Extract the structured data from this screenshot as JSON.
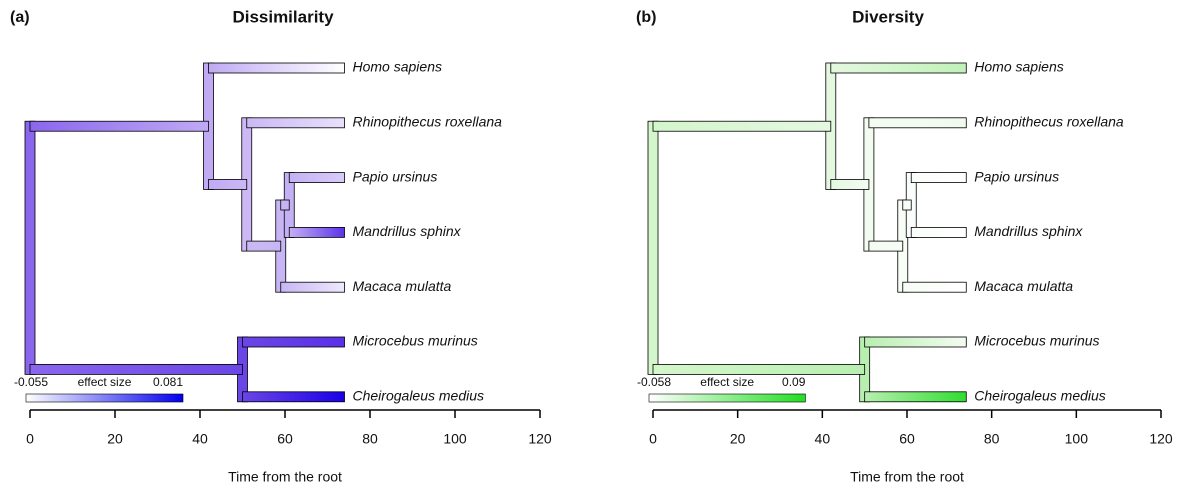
{
  "panels": [
    {
      "label": "(a)",
      "title": "Dissimilarity",
      "xlabel": "Time from the root",
      "xlim": [
        0,
        120
      ],
      "xticks": [
        0,
        20,
        40,
        60,
        80,
        100,
        120
      ],
      "tip_time": 74,
      "legend": {
        "min": -0.055,
        "title": "effect size",
        "max": 0.081,
        "low_color": "#ffffff",
        "high_color": "#0000ee"
      },
      "tree": {
        "time": 0,
        "color": "#8a66ee",
        "children": [
          {
            "time": 42,
            "color": "#c0aaf4",
            "children": [
              {
                "name": "Homo sapiens",
                "color": "#ffffff"
              },
              {
                "time": 51,
                "color": "#cbb8f5",
                "children": [
                  {
                    "name": "Rhinopithecus roxellana",
                    "color": "#e8e0fb"
                  },
                  {
                    "time": 59,
                    "color": "#c8b6f4",
                    "children": [
                      {
                        "time": 61,
                        "color": "#c4b0f4",
                        "children": [
                          {
                            "name": "Papio ursinus",
                            "color": "#d8cdf8"
                          },
                          {
                            "name": "Mandrillus sphinx",
                            "color": "#5a34e8"
                          }
                        ]
                      },
                      {
                        "name": "Macaca mulatta",
                        "color": "#efe9fc"
                      }
                    ]
                  }
                ]
              }
            ]
          },
          {
            "time": 50,
            "color": "#6a46e6",
            "children": [
              {
                "name": "Microcebus murinus",
                "color": "#5a30e8"
              },
              {
                "name": "Cheirogaleus medius",
                "color": "#1a00e8"
              }
            ]
          }
        ]
      }
    },
    {
      "label": "(b)",
      "title": "Diversity",
      "xlabel": "Time from the root",
      "xlim": [
        0,
        120
      ],
      "xticks": [
        0,
        20,
        40,
        60,
        80,
        100,
        120
      ],
      "tip_time": 74,
      "legend": {
        "min": -0.058,
        "title": "effect size",
        "max": 0.09,
        "low_color": "#ffffff",
        "high_color": "#22dd22"
      },
      "tree": {
        "time": 0,
        "color": "#d4f6cc",
        "children": [
          {
            "time": 42,
            "color": "#e4f8e0",
            "children": [
              {
                "name": "Homo sapiens",
                "color": "#c0f2b8"
              },
              {
                "time": 51,
                "color": "#f4fcf2",
                "children": [
                  {
                    "name": "Rhinopithecus roxellana",
                    "color": "#f0fbee"
                  },
                  {
                    "time": 59,
                    "color": "#f8fdf6",
                    "children": [
                      {
                        "time": 61,
                        "color": "#fafefa",
                        "children": [
                          {
                            "name": "Papio ursinus",
                            "color": "#ffffff"
                          },
                          {
                            "name": "Mandrillus sphinx",
                            "color": "#ffffff"
                          }
                        ]
                      },
                      {
                        "name": "Macaca mulatta",
                        "color": "#ffffff"
                      }
                    ]
                  }
                ]
              }
            ]
          },
          {
            "time": 50,
            "color": "#b8efb0",
            "children": [
              {
                "name": "Microcebus murinus",
                "color": "#f4fcf2"
              },
              {
                "name": "Cheirogaleus medius",
                "color": "#30dd30"
              }
            ]
          }
        ]
      }
    }
  ]
}
